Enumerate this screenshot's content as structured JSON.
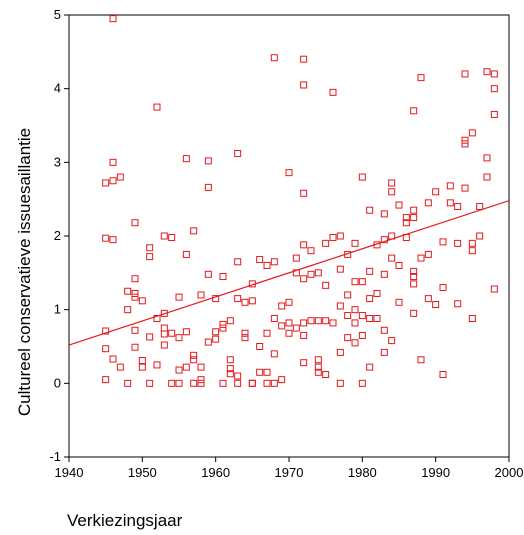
{
  "chart_data": {
    "type": "scatter",
    "title": "",
    "xlabel": "Verkiezingsjaar",
    "ylabel": "Cultureel conservatieve issuesaillantie",
    "xlim": [
      1940,
      2000
    ],
    "ylim": [
      -1,
      5
    ],
    "xticks": [
      1940,
      1950,
      1960,
      1970,
      1980,
      1990,
      2000
    ],
    "yticks": [
      -1,
      0,
      1,
      2,
      3,
      4,
      5
    ],
    "grid": false,
    "legend": "none",
    "marker": "open-square",
    "color": "#e31a1c",
    "fit_line": {
      "x": [
        1940,
        2000
      ],
      "y": [
        0.52,
        2.48
      ]
    },
    "points": [
      [
        1945,
        0.05
      ],
      [
        1945,
        0.47
      ],
      [
        1945,
        0.71
      ],
      [
        1945,
        1.97
      ],
      [
        1945,
        2.72
      ],
      [
        1946,
        0.33
      ],
      [
        1946,
        1.95
      ],
      [
        1946,
        2.75
      ],
      [
        1946,
        3.0
      ],
      [
        1946,
        4.95
      ],
      [
        1947,
        0.22
      ],
      [
        1947,
        2.8
      ],
      [
        1948,
        0.0
      ],
      [
        1948,
        1.0
      ],
      [
        1948,
        1.25
      ],
      [
        1949,
        0.49
      ],
      [
        1949,
        0.72
      ],
      [
        1949,
        1.17
      ],
      [
        1949,
        1.22
      ],
      [
        1949,
        1.42
      ],
      [
        1949,
        2.18
      ],
      [
        1950,
        0.22
      ],
      [
        1950,
        0.31
      ],
      [
        1950,
        1.12
      ],
      [
        1951,
        0.0
      ],
      [
        1951,
        0.63
      ],
      [
        1951,
        1.72
      ],
      [
        1951,
        1.84
      ],
      [
        1952,
        0.25
      ],
      [
        1952,
        0.88
      ],
      [
        1952,
        3.75
      ],
      [
        1953,
        0.52
      ],
      [
        1953,
        0.67
      ],
      [
        1953,
        0.75
      ],
      [
        1953,
        0.95
      ],
      [
        1953,
        2.0
      ],
      [
        1954,
        0.0
      ],
      [
        1954,
        0.68
      ],
      [
        1954,
        1.98
      ],
      [
        1955,
        0.0
      ],
      [
        1955,
        0.18
      ],
      [
        1955,
        0.62
      ],
      [
        1955,
        1.17
      ],
      [
        1956,
        0.22
      ],
      [
        1956,
        0.7
      ],
      [
        1956,
        1.75
      ],
      [
        1956,
        3.05
      ],
      [
        1957,
        0.0
      ],
      [
        1957,
        0.32
      ],
      [
        1957,
        0.38
      ],
      [
        1957,
        2.07
      ],
      [
        1958,
        0.0
      ],
      [
        1958,
        0.05
      ],
      [
        1958,
        0.22
      ],
      [
        1958,
        1.2
      ],
      [
        1959,
        0.56
      ],
      [
        1959,
        1.48
      ],
      [
        1959,
        2.66
      ],
      [
        1959,
        3.02
      ],
      [
        1960,
        0.6
      ],
      [
        1960,
        0.7
      ],
      [
        1960,
        1.15
      ],
      [
        1961,
        0.0
      ],
      [
        1961,
        0.75
      ],
      [
        1961,
        0.8
      ],
      [
        1961,
        1.45
      ],
      [
        1962,
        0.13
      ],
      [
        1962,
        0.2
      ],
      [
        1962,
        0.32
      ],
      [
        1962,
        0.85
      ],
      [
        1963,
        0.0
      ],
      [
        1963,
        0.1
      ],
      [
        1963,
        1.15
      ],
      [
        1963,
        1.65
      ],
      [
        1963,
        3.12
      ],
      [
        1964,
        0.62
      ],
      [
        1964,
        0.68
      ],
      [
        1964,
        1.1
      ],
      [
        1965,
        0.0
      ],
      [
        1965,
        0.0
      ],
      [
        1965,
        1.12
      ],
      [
        1965,
        1.35
      ],
      [
        1966,
        0.15
      ],
      [
        1966,
        0.5
      ],
      [
        1966,
        1.68
      ],
      [
        1967,
        0.0
      ],
      [
        1967,
        0.15
      ],
      [
        1967,
        0.68
      ],
      [
        1967,
        1.6
      ],
      [
        1968,
        0.0
      ],
      [
        1968,
        0.4
      ],
      [
        1968,
        0.88
      ],
      [
        1968,
        1.65
      ],
      [
        1968,
        4.42
      ],
      [
        1969,
        0.05
      ],
      [
        1969,
        0.78
      ],
      [
        1969,
        1.05
      ],
      [
        1970,
        0.68
      ],
      [
        1970,
        0.82
      ],
      [
        1970,
        1.1
      ],
      [
        1970,
        2.86
      ],
      [
        1971,
        0.75
      ],
      [
        1971,
        1.5
      ],
      [
        1971,
        1.7
      ],
      [
        1972,
        0.28
      ],
      [
        1972,
        0.65
      ],
      [
        1972,
        0.82
      ],
      [
        1972,
        1.42
      ],
      [
        1972,
        1.88
      ],
      [
        1972,
        2.58
      ],
      [
        1972,
        4.05
      ],
      [
        1972,
        4.4
      ],
      [
        1973,
        0.85
      ],
      [
        1973,
        1.48
      ],
      [
        1973,
        1.8
      ],
      [
        1974,
        0.15
      ],
      [
        1974,
        0.22
      ],
      [
        1974,
        0.32
      ],
      [
        1974,
        0.85
      ],
      [
        1974,
        1.5
      ],
      [
        1975,
        0.12
      ],
      [
        1975,
        0.85
      ],
      [
        1975,
        1.33
      ],
      [
        1975,
        1.9
      ],
      [
        1976,
        0.82
      ],
      [
        1976,
        1.98
      ],
      [
        1976,
        3.95
      ],
      [
        1977,
        0.0
      ],
      [
        1977,
        0.42
      ],
      [
        1977,
        1.05
      ],
      [
        1977,
        1.55
      ],
      [
        1977,
        2.0
      ],
      [
        1978,
        0.62
      ],
      [
        1978,
        0.92
      ],
      [
        1978,
        1.2
      ],
      [
        1978,
        1.75
      ],
      [
        1979,
        0.55
      ],
      [
        1979,
        0.82
      ],
      [
        1979,
        1.0
      ],
      [
        1979,
        1.38
      ],
      [
        1979,
        1.9
      ],
      [
        1980,
        0.0
      ],
      [
        1980,
        0.65
      ],
      [
        1980,
        0.92
      ],
      [
        1980,
        1.38
      ],
      [
        1980,
        2.8
      ],
      [
        1981,
        0.22
      ],
      [
        1981,
        0.88
      ],
      [
        1981,
        1.15
      ],
      [
        1981,
        1.52
      ],
      [
        1981,
        2.35
      ],
      [
        1982,
        0.88
      ],
      [
        1982,
        1.22
      ],
      [
        1982,
        1.88
      ],
      [
        1983,
        0.42
      ],
      [
        1983,
        0.72
      ],
      [
        1983,
        1.48
      ],
      [
        1983,
        1.95
      ],
      [
        1983,
        2.3
      ],
      [
        1984,
        0.58
      ],
      [
        1984,
        1.7
      ],
      [
        1984,
        2.0
      ],
      [
        1984,
        2.6
      ],
      [
        1984,
        2.72
      ],
      [
        1985,
        1.1
      ],
      [
        1985,
        1.6
      ],
      [
        1985,
        2.42
      ],
      [
        1986,
        1.98
      ],
      [
        1986,
        2.18
      ],
      [
        1986,
        2.25
      ],
      [
        1987,
        0.95
      ],
      [
        1987,
        1.35
      ],
      [
        1987,
        1.45
      ],
      [
        1987,
        1.52
      ],
      [
        1987,
        2.25
      ],
      [
        1987,
        2.35
      ],
      [
        1987,
        3.7
      ],
      [
        1988,
        0.32
      ],
      [
        1988,
        1.7
      ],
      [
        1988,
        4.15
      ],
      [
        1989,
        1.15
      ],
      [
        1989,
        1.75
      ],
      [
        1989,
        2.45
      ],
      [
        1990,
        1.07
      ],
      [
        1990,
        2.6
      ],
      [
        1991,
        0.12
      ],
      [
        1991,
        1.3
      ],
      [
        1991,
        1.92
      ],
      [
        1992,
        2.45
      ],
      [
        1992,
        2.68
      ],
      [
        1993,
        1.08
      ],
      [
        1993,
        1.9
      ],
      [
        1993,
        2.4
      ],
      [
        1994,
        2.65
      ],
      [
        1994,
        3.25
      ],
      [
        1994,
        3.3
      ],
      [
        1994,
        4.2
      ],
      [
        1995,
        0.88
      ],
      [
        1995,
        1.8
      ],
      [
        1995,
        1.9
      ],
      [
        1995,
        3.4
      ],
      [
        1996,
        2.0
      ],
      [
        1996,
        2.4
      ],
      [
        1997,
        2.8
      ],
      [
        1997,
        3.06
      ],
      [
        1997,
        4.23
      ],
      [
        1998,
        1.28
      ],
      [
        1998,
        3.65
      ],
      [
        1998,
        4.0
      ],
      [
        1998,
        4.2
      ]
    ]
  }
}
